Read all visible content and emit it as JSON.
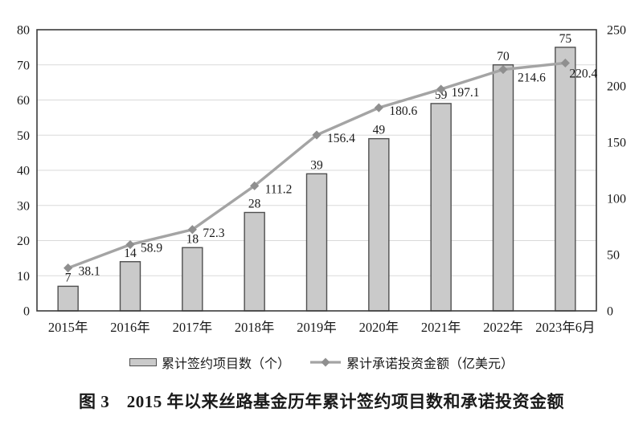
{
  "figure": {
    "caption": "图 3　2015 年以来丝路基金历年累计签约项目数和承诺投资金额"
  },
  "legend": {
    "bar_label": "累计签约项目数（个）",
    "line_label": "累计承诺投资金额（亿美元）"
  },
  "colors": {
    "bar_fill": "#cacaca",
    "bar_border": "#4f4f4f",
    "line": "#a4a4a4",
    "marker": "#8f8f8f",
    "grid": "#d9d9d9",
    "frame": "#3b3b3b",
    "text": "#1a1a1a",
    "background": "#ffffff"
  },
  "chart_data": {
    "type": "bar",
    "subtype": "combo-bar-line",
    "categories": [
      "2015年",
      "2016年",
      "2017年",
      "2018年",
      "2019年",
      "2020年",
      "2021年",
      "2022年",
      "2023年6月"
    ],
    "series": [
      {
        "name": "累计签约项目数（个）",
        "type": "bar",
        "axis": "left",
        "values": [
          7,
          14,
          18,
          28,
          39,
          49,
          59,
          70,
          75
        ]
      },
      {
        "name": "累计承诺投资金额（亿美元）",
        "type": "line",
        "axis": "right",
        "marker": "diamond",
        "values": [
          38.1,
          58.9,
          72.3,
          111.2,
          156.4,
          180.6,
          197.1,
          214.6,
          220.4
        ]
      }
    ],
    "left_axis": {
      "min": 0,
      "max": 80,
      "step": 10
    },
    "right_axis": {
      "min": 0,
      "max": 250,
      "step": 50
    },
    "grid": true,
    "data_labels": true,
    "legend_position": "bottom",
    "title": "",
    "xlabel": "",
    "ylabel_left": "",
    "ylabel_right": ""
  }
}
